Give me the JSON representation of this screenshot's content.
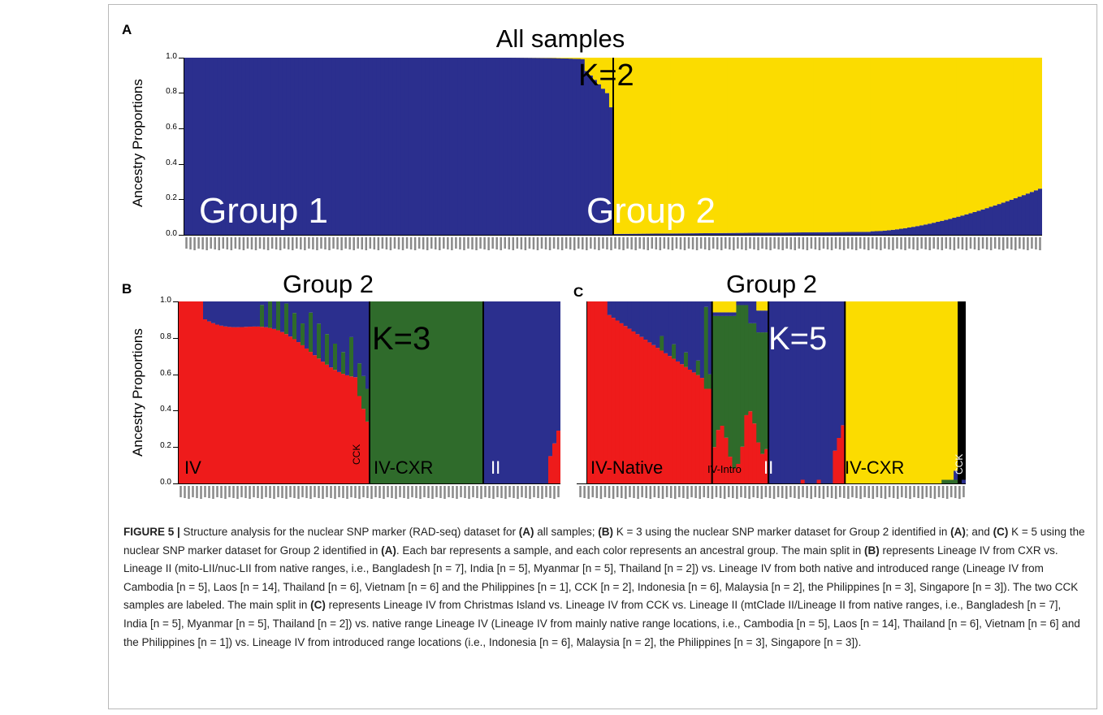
{
  "panels": [
    {
      "letter": "A",
      "title": "All samples",
      "ylabel": "Ancestry Proportions",
      "yticks": [
        "1.0",
        "0.8",
        "0.6",
        "0.4",
        "0.2",
        "0.0"
      ],
      "labels": {
        "k": "K=2",
        "left": "Group 1",
        "right": "Group 2"
      }
    },
    {
      "letter": "B",
      "title": "Group 2",
      "ylabel": "Ancestry Proportions",
      "yticks": [
        "1.0",
        "0.8",
        "0.6",
        "0.4",
        "0.2",
        "0.0"
      ],
      "labels": {
        "k": "K=3",
        "iv": "IV",
        "cck": "CCK",
        "ivcxr": "IV-CXR",
        "ii": "II"
      }
    },
    {
      "letter": "C",
      "title": "Group 2",
      "labels": {
        "k": "K=5",
        "native": "IV-Native",
        "intro": "IV-Intro",
        "ii": "II",
        "ivcxr": "IV-CXR",
        "cck": "CCK"
      }
    }
  ],
  "colors": {
    "blue": "#2b2f8e",
    "yellow": "#fbdc00",
    "red": "#ee1b1b",
    "green": "#2f6b2b",
    "black": "#000000"
  },
  "chart_data": [
    {
      "type": "bar",
      "stacked": true,
      "panel": "A",
      "k": 2,
      "ylim": [
        0,
        1
      ],
      "series": [
        {
          "name": "Group 1 cluster",
          "color": "blue",
          "values_desc": "Group 1 samples ~1.0 (last few drop to ~0.75); Group 2 samples ~0.0 rising to ~0.27 at the right end"
        },
        {
          "name": "Group 2 cluster",
          "color": "yellow",
          "values_desc": "complement of blue"
        }
      ],
      "group_split_fraction": 0.5
    },
    {
      "type": "bar",
      "stacked": true,
      "panel": "B",
      "k": 3,
      "ylim": [
        0,
        1
      ],
      "segments": [
        "IV",
        "CCK",
        "IV-CXR",
        "II"
      ]
    },
    {
      "type": "bar",
      "stacked": true,
      "panel": "C",
      "k": 5,
      "ylim": [
        0,
        1
      ],
      "segments": [
        "IV-Native",
        "IV-Intro",
        "II",
        "IV-CXR",
        "CCK"
      ]
    }
  ],
  "caption": {
    "fig": "FIGURE 5 |",
    "p1": " Structure analysis for the nuclear SNP marker (RAD-seq) dataset for ",
    "a1": "(A)",
    "p2": " all samples; ",
    "b1": "(B)",
    "p3": " K = 3 using the nuclear SNP marker dataset for Group 2 identified in ",
    "a2": "(A)",
    "p4": "; and ",
    "c1": "(C)",
    "p5": " K = 5 using the nuclear SNP marker dataset for Group 2 identified in ",
    "a3": "(A)",
    "p6": ". Each bar represents a sample, and each color represents an ancestral group. The main split in ",
    "b2": "(B)",
    "p7": " represents Lineage IV from CXR vs. Lineage II (mito-LII/nuc-LII from native ranges, i.e., Bangladesh [n = 7], India [n = 5], Myanmar [n = 5], Thailand [n = 2]) vs. Lineage IV from both native and introduced range (Lineage IV from Cambodia [n = 5], Laos [n = 14], Thailand [n = 6], Vietnam [n = 6] and the Philippines [n = 1], CCK [n = 2], Indonesia [n = 6], Malaysia [n = 2], the Philippines [n = 3], Singapore [n = 3]). The two CCK samples are labeled. The main split in ",
    "c2": "(C)",
    "p8": " represents Lineage IV from Christmas Island vs. Lineage IV from CCK vs. Lineage II (mtClade II/Lineage II from native ranges, i.e., Bangladesh [n = 7], India [n = 5], Myanmar [n = 5], Thailand [n = 2]) vs. native range Lineage IV (Lineage IV from mainly native range locations, i.e., Cambodia [n = 5], Laos [n = 14], Thailand [n = 6], Vietnam [n = 6] and the Philippines [n = 1]) vs. Lineage IV from introduced range locations (i.e., Indonesia [n = 6], Malaysia [n = 2], the Philippines [n = 3], Singapore [n = 3])."
  }
}
